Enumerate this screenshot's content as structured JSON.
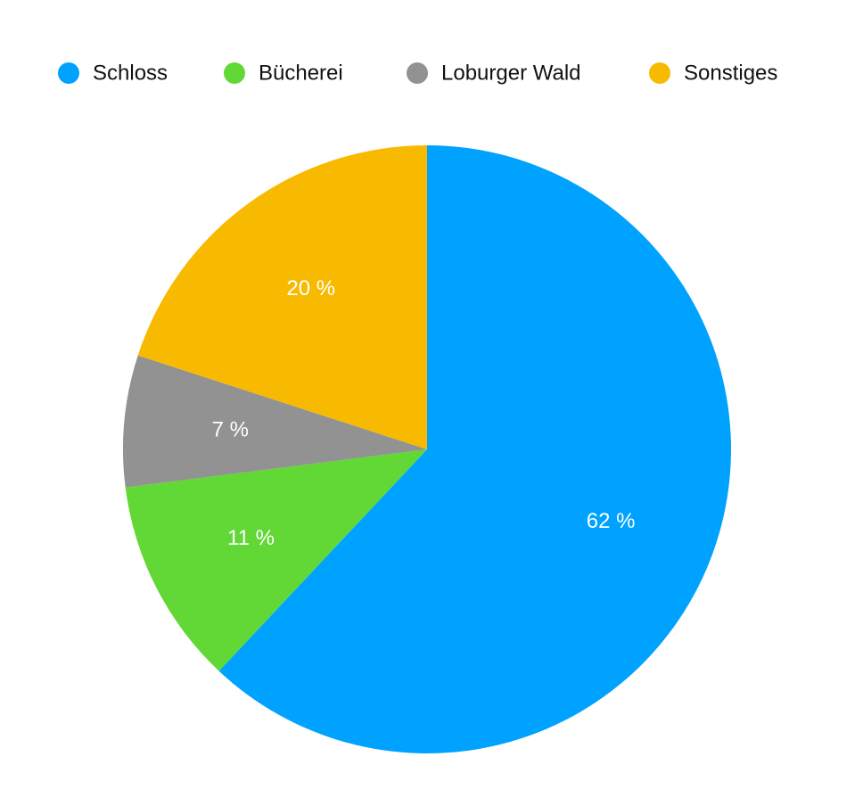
{
  "chart_data": {
    "type": "pie",
    "categories": [
      "Schloss",
      "Bücherei",
      "Loburger Wald",
      "Sonstiges"
    ],
    "values": [
      62,
      11,
      7,
      20
    ],
    "value_labels": [
      "62 %",
      "11 %",
      "7 %",
      "20 %"
    ],
    "colors": [
      "#00a2ff",
      "#61d836",
      "#929292",
      "#f8ba00"
    ],
    "legend": "top"
  }
}
